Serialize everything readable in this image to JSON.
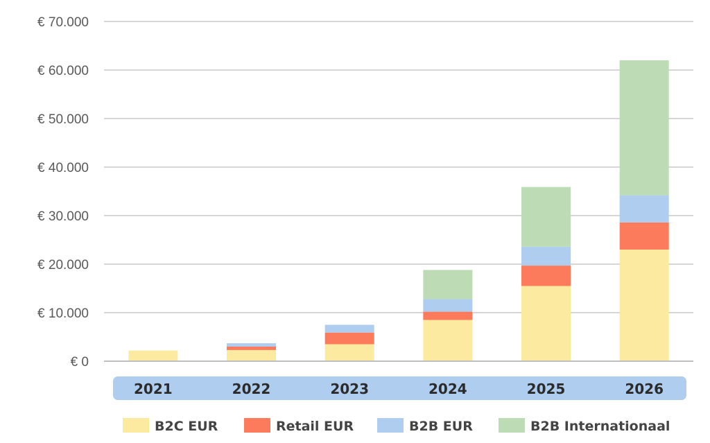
{
  "chart_data": {
    "type": "bar",
    "stacked": true,
    "categories": [
      "2021",
      "2022",
      "2023",
      "2024",
      "2025",
      "2026"
    ],
    "series": [
      {
        "name": "B2C EUR",
        "color": "#fdeaa1",
        "values": [
          2200,
          2300,
          3500,
          8500,
          15500,
          23000
        ]
      },
      {
        "name": "Retail EUR",
        "color": "#fc7b5d",
        "values": [
          0,
          700,
          2400,
          1700,
          4200,
          5600
        ]
      },
      {
        "name": "B2B EUR",
        "color": "#aecdef",
        "values": [
          0,
          700,
          1600,
          2600,
          3900,
          5600
        ]
      },
      {
        "name": "B2B Internationaal",
        "color": "#bddcb5",
        "values": [
          0,
          0,
          0,
          6000,
          12300,
          27800
        ]
      }
    ],
    "ylim": [
      0,
      70000
    ],
    "yticks": [
      0,
      10000,
      20000,
      30000,
      40000,
      50000,
      60000,
      70000
    ],
    "ytick_labels": [
      "€ 0",
      "€ 10.000",
      "€ 20.000",
      "€ 30.000",
      "€ 40.000",
      "€ 50.000",
      "€ 60.000",
      "€ 70.000"
    ],
    "grid": true,
    "legend_position": "bottom",
    "category_band_color": "#aecdef",
    "gridline_color": "#c8c8c8"
  }
}
